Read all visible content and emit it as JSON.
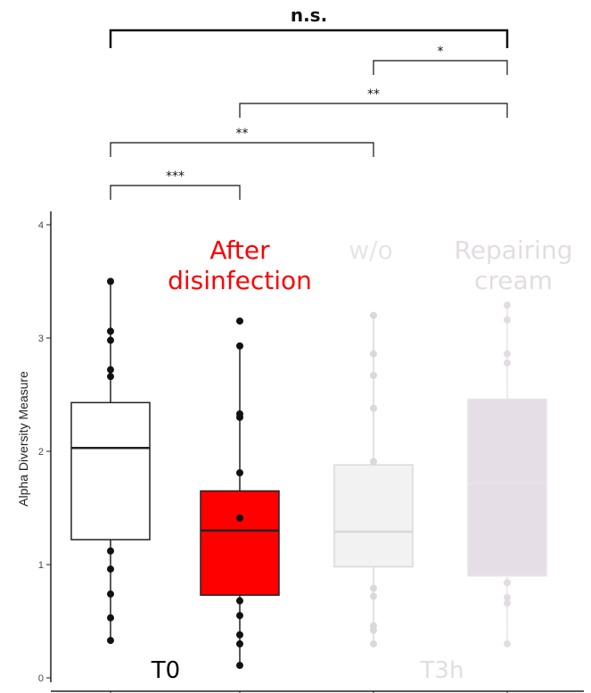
{
  "chart_data": {
    "type": "box",
    "ylabel": "Alpha Diversity Measure",
    "ylim": [
      0,
      4
    ],
    "yticks": [
      0,
      1,
      2,
      3,
      4
    ],
    "groups": [
      {
        "label": "",
        "color": "#ffffff",
        "line": "#222222",
        "point": "#111111",
        "whisker_low": 0.33,
        "q1": 1.22,
        "median": 2.03,
        "q3": 2.43,
        "whisker_high": 3.5,
        "points": [
          0.33,
          0.53,
          0.74,
          0.96,
          1.12,
          2.66,
          2.72,
          2.98,
          3.06,
          3.5
        ]
      },
      {
        "label": "After disinfection",
        "color": "#ff0000",
        "line": "#222222",
        "point": "#111111",
        "whisker_low": 0.11,
        "q1": 0.73,
        "median": 1.3,
        "q3": 1.65,
        "whisker_high": 2.93,
        "points": [
          0.11,
          0.3,
          0.38,
          0.55,
          0.68,
          1.41,
          1.81,
          2.3,
          2.33,
          2.93,
          3.15
        ]
      },
      {
        "label": "w/o",
        "color": "#f2f2f2",
        "line": "#d9d9d9",
        "point": "#d9d9d9",
        "whisker_low": 0.3,
        "q1": 0.98,
        "median": 1.29,
        "q3": 1.88,
        "whisker_high": 3.2,
        "points": [
          0.3,
          0.42,
          0.46,
          0.72,
          0.79,
          1.91,
          2.38,
          2.67,
          2.86,
          3.2
        ]
      },
      {
        "label": "Repairing cream",
        "color": "#e6dee6",
        "line": "#e8e4e8",
        "point": "#e3dde3",
        "whisker_low": 0.3,
        "q1": 0.9,
        "median": 1.72,
        "q3": 2.46,
        "whisker_high": 3.29,
        "points": [
          0.3,
          0.66,
          0.71,
          0.84,
          2.78,
          2.86,
          3.16,
          3.29
        ]
      }
    ],
    "time_labels": [
      {
        "text": "T0",
        "color": "#000000"
      },
      {
        "text": "T3h",
        "color": "#e3dde3"
      }
    ],
    "significance": [
      {
        "from": 0,
        "to": 3,
        "label": "n.s."
      },
      {
        "from": 2,
        "to": 3,
        "label": "*"
      },
      {
        "from": 1,
        "to": 3,
        "label": "**"
      },
      {
        "from": 0,
        "to": 2,
        "label": "**"
      },
      {
        "from": 0,
        "to": 1,
        "label": "***"
      }
    ]
  }
}
